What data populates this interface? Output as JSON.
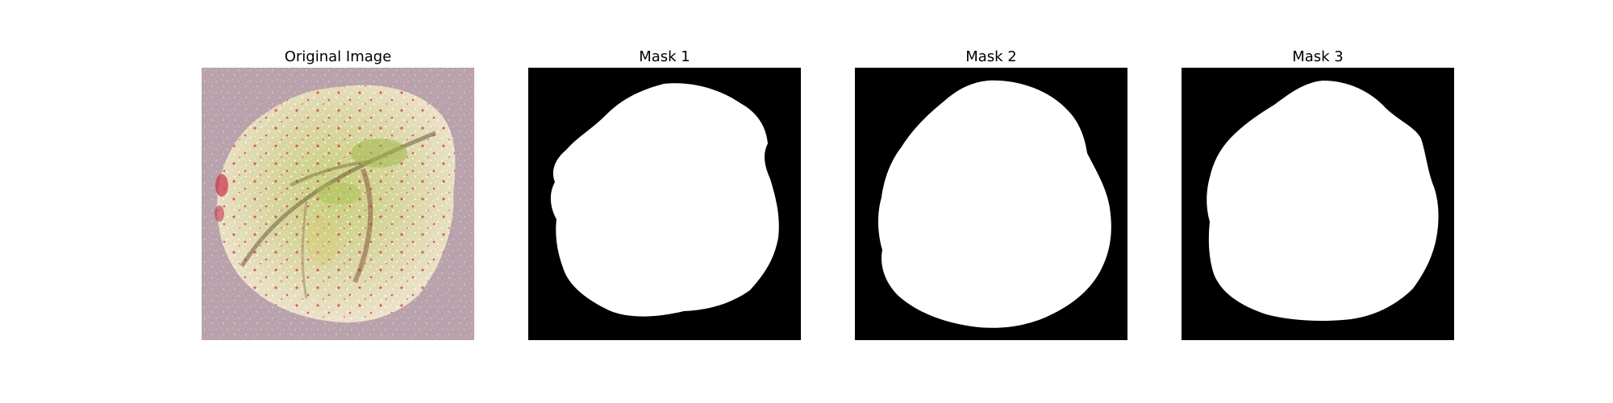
{
  "panels": [
    {
      "title": "Original Image",
      "kind": "photo"
    },
    {
      "title": "Mask 1",
      "kind": "mask"
    },
    {
      "title": "Mask 2",
      "kind": "mask"
    },
    {
      "title": "Mask 3",
      "kind": "mask"
    }
  ],
  "colors": {
    "figure_background": "#ffffff",
    "mask_background": "#000000",
    "mask_foreground": "#ffffff",
    "photo_background": "#b9a2ab",
    "leaf_green": "#a9b85c",
    "leaf_cream": "#efe8cf",
    "speckle_red": "#d0303f",
    "vein_dark": "#6b5a3a"
  }
}
